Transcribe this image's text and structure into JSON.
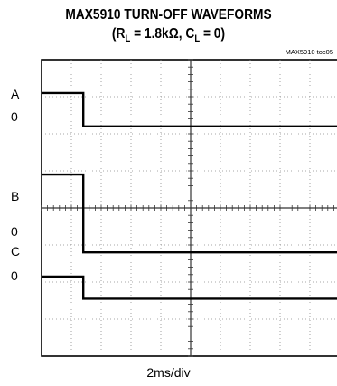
{
  "chart_data": {
    "type": "line",
    "title": "MAX5910 TURN-OFF WAVEFORMS",
    "subtitle_parts": {
      "open": "(R",
      "r_sub": "L",
      "mid": " = 1.8kΩ, C",
      "c_sub": "L",
      "close": " = 0)"
    },
    "note": "MAX5910 toc05",
    "xlabel": "2ms/div",
    "grid": true,
    "divisions": {
      "x": 10,
      "y": 8
    },
    "channel_labels": [
      {
        "text": "A",
        "div": 0.95
      },
      {
        "text": "0",
        "div": 1.55
      },
      {
        "text": "B",
        "div": 3.7
      },
      {
        "text": "0",
        "div": 4.65
      },
      {
        "text": "C",
        "div": 5.2
      },
      {
        "text": "0",
        "div": 5.85
      }
    ],
    "series": [
      {
        "points": [
          [
            0,
            0.9
          ],
          [
            1.4,
            0.9
          ],
          [
            1.4,
            1.8
          ],
          [
            10,
            1.8
          ]
        ]
      },
      {
        "points": [
          [
            0,
            3.1
          ],
          [
            1.4,
            3.1
          ],
          [
            1.4,
            5.2
          ],
          [
            10,
            5.2
          ]
        ]
      },
      {
        "points": [
          [
            0,
            5.85
          ],
          [
            1.4,
            5.85
          ],
          [
            1.4,
            6.45
          ],
          [
            10,
            6.45
          ]
        ]
      }
    ]
  }
}
